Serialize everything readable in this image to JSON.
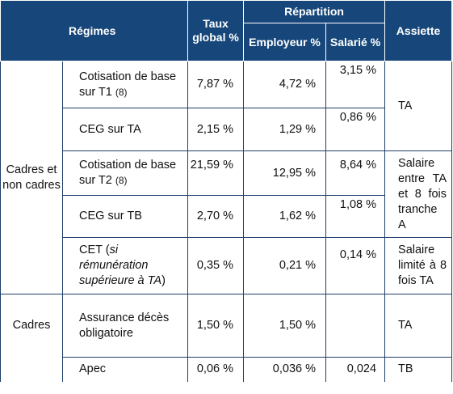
{
  "header": {
    "regimes": "Régimes",
    "taux_global": "Taux global %",
    "repartition": "Répartition",
    "employeur": "Employeur %",
    "salarie": "Salarié %",
    "assiette": "Assiette"
  },
  "groups": {
    "cadres_non_cadres": "Cadres et non cadres",
    "cadres": "Cadres"
  },
  "rows": [
    {
      "label": "Cotisation de base sur T1",
      "note": "(8)",
      "taux": "7,87 %",
      "employeur": "4,72 %",
      "salarie": "3,15 %"
    },
    {
      "label": "CEG sur TA",
      "taux": "2,15 %",
      "employeur": "1,29 %",
      "salarie": "0,86 %"
    },
    {
      "label": "Cotisation de base sur T2",
      "note": "(8)",
      "taux": "21,59 %",
      "employeur": "12,95 %",
      "salarie": "8,64 %"
    },
    {
      "label": "CEG sur TB",
      "taux": "2,70 %",
      "employeur": "1,62 %",
      "salarie": "1,08 %"
    },
    {
      "label_prefix": "CET (",
      "label_italic": "si rémunération supérieure à TA",
      "label_suffix": ")",
      "taux": "0,35 %",
      "employeur": "0,21 %",
      "salarie": "0,14 %"
    },
    {
      "label": "Assurance décès obligatoire",
      "taux": "1,50 %",
      "employeur": "1,50 %",
      "salarie": ""
    },
    {
      "label": "Apec",
      "taux": "0,06 %",
      "employeur": "0,036 %",
      "salarie": "0,024"
    }
  ],
  "assiettes": {
    "ta_1": "TA",
    "t2": "Salaire entre TA et 8 fois tranche A",
    "cet": "Salaire limité à 8 fois TA",
    "ta_2": "TA",
    "tb": "TB"
  }
}
